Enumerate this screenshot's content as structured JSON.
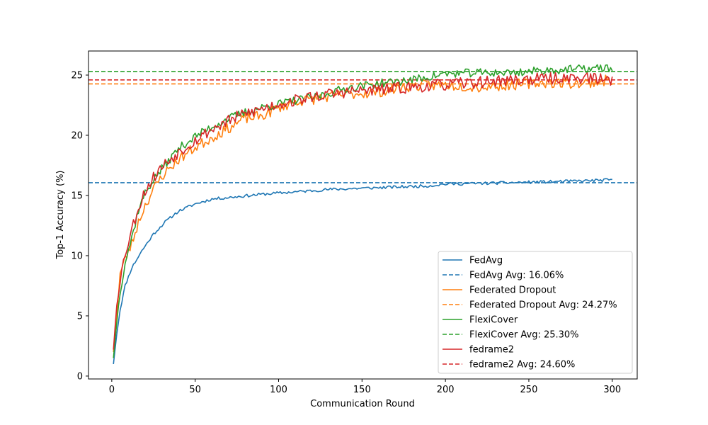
{
  "chart_data": {
    "type": "line",
    "title": "",
    "xlabel": "Communication Round",
    "ylabel": "Top-1 Accuracy (%)",
    "xlim": [
      -13.95,
      314.95
    ],
    "ylim": [
      -0.24,
      27.0
    ],
    "xticks": [
      0,
      50,
      100,
      150,
      200,
      250,
      300
    ],
    "yticks": [
      0,
      5,
      10,
      15,
      20,
      25
    ],
    "grid": false,
    "legend_position": "lower-right",
    "series": [
      {
        "name": "FedAvg",
        "color": "#1f77b4",
        "style": "solid",
        "seed": 11,
        "noise": 0.12,
        "points": [
          [
            1,
            1.0
          ],
          [
            3,
            3.5
          ],
          [
            5,
            5.5
          ],
          [
            8,
            7.5
          ],
          [
            12,
            9.0
          ],
          [
            18,
            10.4
          ],
          [
            25,
            11.8
          ],
          [
            32,
            12.8
          ],
          [
            40,
            13.7
          ],
          [
            50,
            14.3
          ],
          [
            60,
            14.7
          ],
          [
            75,
            14.9
          ],
          [
            90,
            15.1
          ],
          [
            110,
            15.3
          ],
          [
            130,
            15.5
          ],
          [
            150,
            15.6
          ],
          [
            170,
            15.7
          ],
          [
            190,
            15.8
          ],
          [
            200,
            15.95
          ],
          [
            220,
            16.0
          ],
          [
            250,
            16.1
          ],
          [
            280,
            16.2
          ],
          [
            300,
            16.3
          ]
        ]
      },
      {
        "name": "FedAvg Avg: 16.06%",
        "color": "#1f77b4",
        "style": "dashed",
        "y": 16.06
      },
      {
        "name": "Federated Dropout",
        "color": "#ff7f0e",
        "style": "solid",
        "seed": 23,
        "noise": 0.45,
        "points": [
          [
            1,
            2.0
          ],
          [
            3,
            5.0
          ],
          [
            5,
            8.5
          ],
          [
            8,
            9.7
          ],
          [
            12,
            11.0
          ],
          [
            16,
            12.8
          ],
          [
            20,
            14.2
          ],
          [
            25,
            15.5
          ],
          [
            30,
            16.6
          ],
          [
            40,
            18.0
          ],
          [
            50,
            19.0
          ],
          [
            60,
            19.8
          ],
          [
            70,
            20.6
          ],
          [
            80,
            21.4
          ],
          [
            90,
            21.6
          ],
          [
            100,
            22.3
          ],
          [
            110,
            22.8
          ],
          [
            120,
            23.0
          ],
          [
            140,
            23.4
          ],
          [
            160,
            23.6
          ],
          [
            180,
            24.1
          ],
          [
            200,
            24.2
          ],
          [
            220,
            24.0
          ],
          [
            240,
            24.2
          ],
          [
            260,
            24.4
          ],
          [
            280,
            24.3
          ],
          [
            300,
            24.6
          ]
        ]
      },
      {
        "name": "Federated Dropout Avg: 24.27%",
        "color": "#ff7f0e",
        "style": "dashed",
        "y": 24.27
      },
      {
        "name": "FlexiCover",
        "color": "#2ca02c",
        "style": "solid",
        "seed": 37,
        "noise": 0.35,
        "points": [
          [
            1,
            1.5
          ],
          [
            3,
            4.5
          ],
          [
            5,
            7.0
          ],
          [
            8,
            9.5
          ],
          [
            12,
            11.5
          ],
          [
            16,
            13.8
          ],
          [
            20,
            15.2
          ],
          [
            25,
            16.3
          ],
          [
            30,
            17.2
          ],
          [
            40,
            18.9
          ],
          [
            50,
            19.9
          ],
          [
            60,
            20.7
          ],
          [
            70,
            21.4
          ],
          [
            80,
            21.9
          ],
          [
            90,
            22.3
          ],
          [
            100,
            22.6
          ],
          [
            110,
            22.9
          ],
          [
            120,
            23.1
          ],
          [
            140,
            23.9
          ],
          [
            160,
            24.3
          ],
          [
            180,
            24.6
          ],
          [
            200,
            25.1
          ],
          [
            220,
            25.2
          ],
          [
            240,
            25.2
          ],
          [
            260,
            25.4
          ],
          [
            280,
            25.5
          ],
          [
            300,
            25.6
          ]
        ]
      },
      {
        "name": "FlexiCover Avg: 25.30%",
        "color": "#2ca02c",
        "style": "dashed",
        "y": 25.3
      },
      {
        "name": "fedrame2",
        "color": "#d62728",
        "style": "solid",
        "seed": 53,
        "noise": 0.5,
        "points": [
          [
            1,
            2.2
          ],
          [
            3,
            6.0
          ],
          [
            5,
            8.0
          ],
          [
            8,
            10.2
          ],
          [
            12,
            12.2
          ],
          [
            16,
            14.0
          ],
          [
            20,
            15.4
          ],
          [
            25,
            16.5
          ],
          [
            30,
            17.4
          ],
          [
            40,
            18.6
          ],
          [
            50,
            19.6
          ],
          [
            60,
            20.5
          ],
          [
            70,
            21.2
          ],
          [
            80,
            21.8
          ],
          [
            90,
            22.2
          ],
          [
            100,
            22.6
          ],
          [
            110,
            22.9
          ],
          [
            120,
            23.2
          ],
          [
            140,
            23.6
          ],
          [
            160,
            23.8
          ],
          [
            180,
            24.0
          ],
          [
            200,
            24.2
          ],
          [
            220,
            24.4
          ],
          [
            240,
            24.6
          ],
          [
            260,
            24.7
          ],
          [
            280,
            24.8
          ],
          [
            300,
            24.6
          ]
        ]
      },
      {
        "name": "fedrame2 Avg: 24.60%",
        "color": "#d62728",
        "style": "dashed",
        "y": 24.6
      }
    ]
  }
}
